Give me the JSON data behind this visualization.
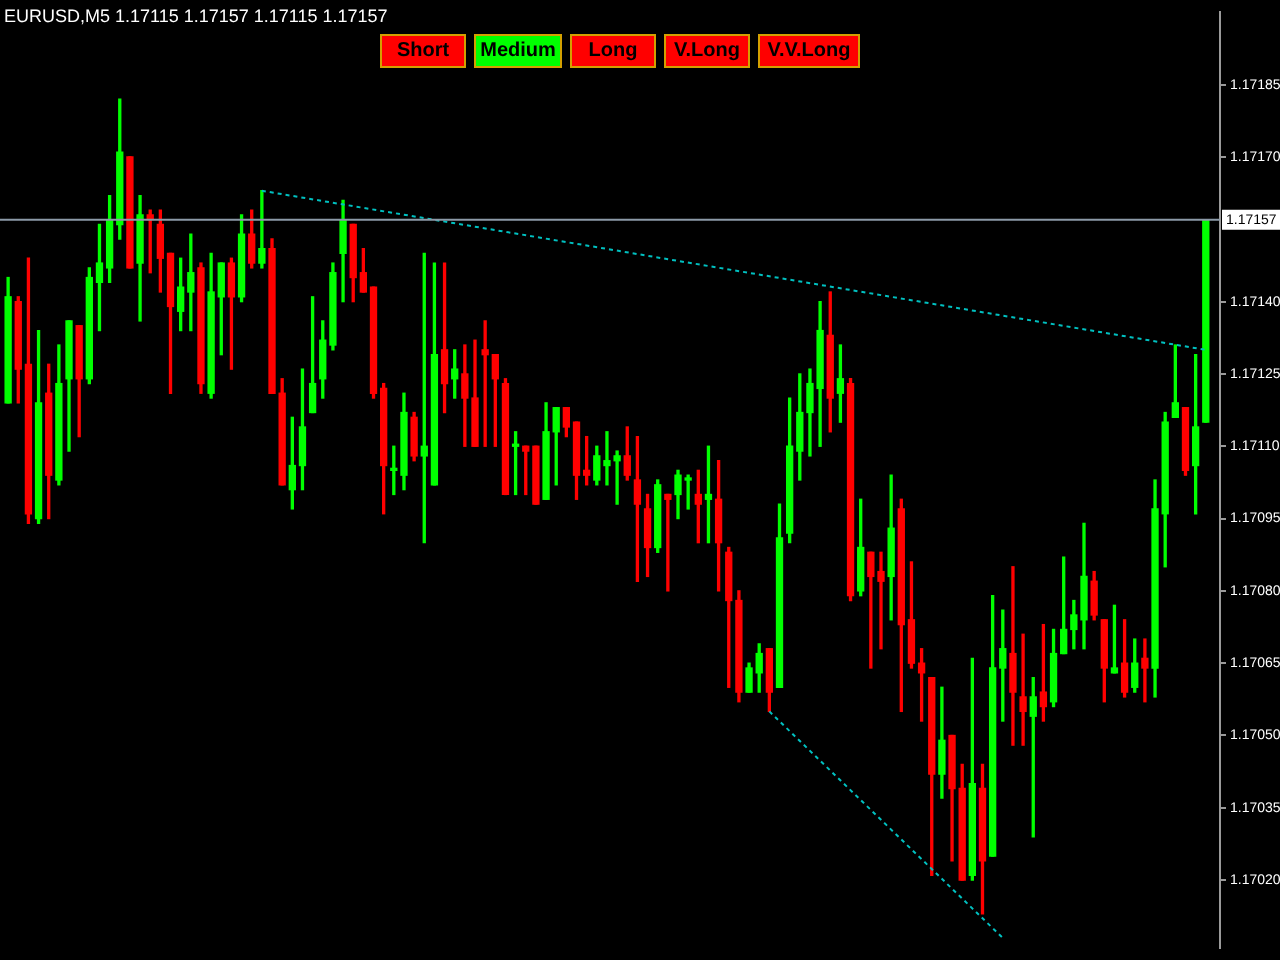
{
  "chart_data": {
    "type": "candlestick",
    "title": "EURUSD,M5 1.17115 1.17157 1.17115 1.17157",
    "categories": [
      null,
      null,
      null,
      null,
      null,
      null,
      null,
      null,
      null,
      null,
      null,
      null,
      null,
      null,
      null,
      null,
      null,
      null,
      null,
      null,
      null,
      null,
      null,
      null,
      null,
      null,
      null,
      null,
      null,
      null,
      null,
      null,
      null,
      null,
      null,
      null,
      null,
      null,
      null,
      null,
      null,
      null,
      null,
      null,
      null,
      null,
      null,
      null,
      null,
      null,
      null,
      null,
      null,
      null,
      null,
      null,
      null,
      null,
      null,
      null,
      null,
      null,
      null,
      null,
      null,
      null,
      null,
      null,
      null,
      null,
      null,
      null,
      null,
      null,
      null,
      null,
      null,
      null,
      null,
      null,
      null,
      null,
      null,
      null,
      null,
      null,
      null,
      null,
      null,
      null,
      null,
      null,
      null,
      null,
      null,
      null,
      null,
      null,
      null,
      null,
      null,
      null,
      null,
      null,
      null,
      null,
      null,
      null,
      null,
      null,
      null,
      null,
      null,
      null,
      null,
      null,
      null,
      null,
      null
    ],
    "ohlc": [
      [
        1.17119,
        1.17145,
        1.17119,
        1.17141
      ],
      [
        1.1714,
        1.17141,
        1.17119,
        1.17126
      ],
      [
        1.17127,
        1.17149,
        1.17094,
        1.17096
      ],
      [
        1.17095,
        1.17134,
        1.17094,
        1.17119
      ],
      [
        1.17121,
        1.17127,
        1.17095,
        1.17104
      ],
      [
        1.17103,
        1.17131,
        1.17102,
        1.17123
      ],
      [
        1.17124,
        1.17136,
        1.17109,
        1.17136
      ],
      [
        1.17135,
        1.17135,
        1.17112,
        1.17124
      ],
      [
        1.17124,
        1.17147,
        1.17123,
        1.17145
      ],
      [
        1.17144,
        1.17156,
        1.17134,
        1.17148
      ],
      [
        1.17147,
        1.17162,
        1.17144,
        1.17157
      ],
      [
        1.17156,
        1.17182,
        1.17153,
        1.17171
      ],
      [
        1.1717,
        1.1717,
        1.17147,
        1.17147
      ],
      [
        1.17148,
        1.17162,
        1.17136,
        1.17158
      ],
      [
        1.17158,
        1.17159,
        1.17146,
        1.17157
      ],
      [
        1.17156,
        1.17159,
        1.17142,
        1.17149
      ],
      [
        1.1715,
        1.1715,
        1.17121,
        1.17139
      ],
      [
        1.17138,
        1.17149,
        1.17134,
        1.17143
      ],
      [
        1.17142,
        1.17154,
        1.17134,
        1.17146
      ],
      [
        1.17147,
        1.17148,
        1.17121,
        1.17123
      ],
      [
        1.17121,
        1.1715,
        1.1712,
        1.17142
      ],
      [
        1.17141,
        1.17148,
        1.17129,
        1.17148
      ],
      [
        1.17148,
        1.17149,
        1.17126,
        1.17141
      ],
      [
        1.17141,
        1.17158,
        1.1714,
        1.17154
      ],
      [
        1.17154,
        1.17159,
        1.17147,
        1.17148
      ],
      [
        1.17148,
        1.17163,
        1.17147,
        1.17151
      ],
      [
        1.17151,
        1.17153,
        1.17121,
        1.17121
      ],
      [
        1.17121,
        1.17124,
        1.17102,
        1.17102
      ],
      [
        1.17101,
        1.17116,
        1.17097,
        1.17106
      ],
      [
        1.17106,
        1.17126,
        1.17101,
        1.17114
      ],
      [
        1.17117,
        1.17141,
        1.17117,
        1.17123
      ],
      [
        1.17124,
        1.17136,
        1.1712,
        1.17132
      ],
      [
        1.17131,
        1.17148,
        1.1713,
        1.17146
      ],
      [
        1.1715,
        1.17161,
        1.1714,
        1.17157
      ],
      [
        1.17156,
        1.17156,
        1.1714,
        1.17145
      ],
      [
        1.17146,
        1.17151,
        1.17142,
        1.17142
      ],
      [
        1.17143,
        1.17143,
        1.1712,
        1.17121
      ],
      [
        1.17122,
        1.17123,
        1.17096,
        1.17106
      ],
      [
        1.17105,
        1.1711,
        1.171,
        1.17105
      ],
      [
        1.17104,
        1.17121,
        1.17101,
        1.17117
      ],
      [
        1.17116,
        1.17117,
        1.17107,
        1.17108
      ],
      [
        1.17108,
        1.1715,
        1.1709,
        1.1711
      ],
      [
        1.17102,
        1.17148,
        1.17102,
        1.17129
      ],
      [
        1.1713,
        1.17148,
        1.17117,
        1.17123
      ],
      [
        1.17124,
        1.1713,
        1.1712,
        1.17126
      ],
      [
        1.17125,
        1.17131,
        1.1711,
        1.1712
      ],
      [
        1.1712,
        1.17132,
        1.1711,
        1.1711
      ],
      [
        1.1713,
        1.17136,
        1.1711,
        1.17129
      ],
      [
        1.17129,
        1.17129,
        1.1711,
        1.17124
      ],
      [
        1.17123,
        1.17124,
        1.171,
        1.171
      ],
      [
        1.1711,
        1.17113,
        1.171,
        1.1711
      ],
      [
        1.1711,
        1.1711,
        1.171,
        1.17109
      ],
      [
        1.1711,
        1.1711,
        1.17098,
        1.17098
      ],
      [
        1.17099,
        1.17119,
        1.17099,
        1.17113
      ],
      [
        1.17113,
        1.17118,
        1.17102,
        1.17118
      ],
      [
        1.17118,
        1.17118,
        1.17112,
        1.17114
      ],
      [
        1.17115,
        1.17115,
        1.17099,
        1.17104
      ],
      [
        1.17105,
        1.17112,
        1.17102,
        1.17104
      ],
      [
        1.17103,
        1.1711,
        1.17102,
        1.17108
      ],
      [
        1.17106,
        1.17113,
        1.17102,
        1.17107
      ],
      [
        1.17107,
        1.17109,
        1.17098,
        1.17108
      ],
      [
        1.17108,
        1.17114,
        1.17103,
        1.17104
      ],
      [
        1.17103,
        1.17112,
        1.17082,
        1.17098
      ],
      [
        1.17097,
        1.171,
        1.17083,
        1.17089
      ],
      [
        1.17089,
        1.17103,
        1.17088,
        1.17102
      ],
      [
        1.171,
        1.171,
        1.1708,
        1.17099
      ],
      [
        1.171,
        1.17105,
        1.17095,
        1.17104
      ],
      [
        1.17103,
        1.17104,
        1.17097,
        1.17103
      ],
      [
        1.171,
        1.17105,
        1.1709,
        1.17098
      ],
      [
        1.17099,
        1.1711,
        1.1709,
        1.171
      ],
      [
        1.17099,
        1.17107,
        1.1708,
        1.1709
      ],
      [
        1.17088,
        1.17089,
        1.1706,
        1.17078
      ],
      [
        1.17078,
        1.1708,
        1.17057,
        1.17059
      ],
      [
        1.17059,
        1.17065,
        1.17059,
        1.17064
      ],
      [
        1.17063,
        1.17069,
        1.17059,
        1.17067
      ],
      [
        1.17068,
        1.17068,
        1.17055,
        1.17059
      ],
      [
        1.1706,
        1.17098,
        1.1706,
        1.17091
      ],
      [
        1.17092,
        1.1712,
        1.1709,
        1.1711
      ],
      [
        1.17109,
        1.17125,
        1.17103,
        1.17117
      ],
      [
        1.17117,
        1.17126,
        1.17108,
        1.17123
      ],
      [
        1.17122,
        1.1714,
        1.1711,
        1.17134
      ],
      [
        1.17133,
        1.17142,
        1.17113,
        1.1712
      ],
      [
        1.17121,
        1.17131,
        1.17115,
        1.17124
      ],
      [
        1.17123,
        1.17124,
        1.17078,
        1.17079
      ],
      [
        1.1708,
        1.17099,
        1.17079,
        1.17089
      ],
      [
        1.17088,
        1.17088,
        1.17064,
        1.17083
      ],
      [
        1.17084,
        1.17088,
        1.17068,
        1.17082
      ],
      [
        1.17083,
        1.17104,
        1.17074,
        1.17093
      ],
      [
        1.17097,
        1.17099,
        1.17055,
        1.17073
      ],
      [
        1.17074,
        1.17086,
        1.17064,
        1.17065
      ],
      [
        1.17065,
        1.17068,
        1.17053,
        1.17063
      ],
      [
        1.17062,
        1.17062,
        1.17021,
        1.17042
      ],
      [
        1.17042,
        1.1706,
        1.17037,
        1.17049
      ],
      [
        1.1705,
        1.1705,
        1.17024,
        1.17039
      ],
      [
        1.17039,
        1.17044,
        1.1702,
        1.1702
      ],
      [
        1.17021,
        1.17066,
        1.1702,
        1.1704
      ],
      [
        1.17039,
        1.17044,
        1.17013,
        1.17024
      ],
      [
        1.17025,
        1.17079,
        1.17025,
        1.17064
      ],
      [
        1.17064,
        1.17076,
        1.17053,
        1.17068
      ],
      [
        1.17067,
        1.17085,
        1.17048,
        1.17059
      ],
      [
        1.17058,
        1.17071,
        1.17048,
        1.17055
      ],
      [
        1.17054,
        1.17062,
        1.17029,
        1.17058
      ],
      [
        1.17059,
        1.17073,
        1.17053,
        1.17056
      ],
      [
        1.17057,
        1.17072,
        1.17056,
        1.17067
      ],
      [
        1.17067,
        1.17087,
        1.17067,
        1.17072
      ],
      [
        1.17072,
        1.17078,
        1.17068,
        1.17075
      ],
      [
        1.17074,
        1.17094,
        1.17068,
        1.17083
      ],
      [
        1.17082,
        1.17084,
        1.17074,
        1.17075
      ],
      [
        1.17074,
        1.17074,
        1.17057,
        1.17064
      ],
      [
        1.17063,
        1.17077,
        1.17063,
        1.17064
      ],
      [
        1.17065,
        1.17074,
        1.17058,
        1.17059
      ],
      [
        1.1706,
        1.1707,
        1.17059,
        1.17065
      ],
      [
        1.17066,
        1.1707,
        1.17057,
        1.17064
      ],
      [
        1.17064,
        1.17103,
        1.17058,
        1.17097
      ],
      [
        1.17096,
        1.17117,
        1.17085,
        1.17115
      ],
      [
        1.17116,
        1.17131,
        1.17116,
        1.17119
      ],
      [
        1.17118,
        1.17118,
        1.17104,
        1.17105
      ],
      [
        1.17106,
        1.17129,
        1.17096,
        1.17114
      ],
      [
        1.17115,
        1.17157,
        1.17115,
        1.17157
      ]
    ],
    "ylim": [
      1.17006,
      1.172
    ],
    "yticks": [
      {
        "value": 1.1702,
        "label": "1.17020"
      },
      {
        "value": 1.17035,
        "label": "1.17035"
      },
      {
        "value": 1.1705,
        "label": "1.17050"
      },
      {
        "value": 1.17065,
        "label": "1.17065"
      },
      {
        "value": 1.1708,
        "label": "1.17080"
      },
      {
        "value": 1.17095,
        "label": "1.17095"
      },
      {
        "value": 1.1711,
        "label": "1.17110"
      },
      {
        "value": 1.17125,
        "label": "1.17125"
      },
      {
        "value": 1.1714,
        "label": "1.17140"
      },
      {
        "value": 1.1717,
        "label": "1.17170"
      },
      {
        "value": 1.17185,
        "label": "1.17185"
      }
    ],
    "ref_lines": [
      {
        "axis": "y",
        "value": 1.17157,
        "label": "1.17157",
        "color": "#8c9aa8"
      }
    ],
    "series": [
      {
        "type": "line",
        "values": [
          null,
          null,
          null,
          null,
          null,
          null,
          null,
          null,
          null,
          null,
          null,
          null,
          null,
          null,
          null,
          null,
          null,
          null,
          null,
          null,
          null,
          null,
          null,
          null,
          null,
          1.17163,
          null,
          null,
          null,
          null,
          null,
          null,
          null,
          null,
          null,
          null,
          null,
          null,
          null,
          null,
          null,
          null,
          null,
          null,
          null,
          null,
          null,
          null,
          null,
          null,
          null,
          null,
          null,
          null,
          null,
          null,
          null,
          null,
          null,
          null,
          null,
          null,
          null,
          null,
          null,
          null,
          null,
          null,
          null,
          null,
          null,
          null,
          null,
          null,
          null,
          null,
          null,
          null,
          null,
          null,
          null,
          null,
          null,
          null,
          null,
          null,
          null,
          null,
          null,
          null,
          null,
          null,
          null,
          null,
          null,
          null,
          null,
          null,
          null,
          null,
          null,
          null,
          null,
          null,
          null,
          null,
          null,
          null,
          null,
          null,
          null,
          null,
          null,
          null,
          null,
          null,
          null,
          null,
          1.1713
        ],
        "color": "#00c0c0",
        "line_style": "dotted",
        "marker": "none"
      },
      {
        "type": "line",
        "values": [
          null,
          null,
          null,
          null,
          null,
          null,
          null,
          null,
          null,
          null,
          null,
          null,
          null,
          null,
          null,
          null,
          null,
          null,
          null,
          null,
          null,
          null,
          null,
          null,
          null,
          null,
          null,
          null,
          null,
          null,
          null,
          null,
          null,
          null,
          null,
          null,
          null,
          null,
          null,
          null,
          null,
          null,
          null,
          null,
          null,
          null,
          null,
          null,
          null,
          null,
          null,
          null,
          null,
          null,
          null,
          null,
          null,
          null,
          null,
          null,
          null,
          null,
          null,
          null,
          null,
          null,
          null,
          null,
          null,
          null,
          null,
          null,
          null,
          null,
          null,
          1.17055,
          null,
          null,
          null,
          null,
          null,
          null,
          null,
          null,
          null,
          null,
          null,
          null,
          null,
          null,
          null,
          null,
          null,
          null,
          null,
          null,
          null,
          null,
          1.17008,
          null,
          null,
          null,
          null,
          null,
          null,
          null,
          null,
          null,
          null,
          null,
          null,
          null,
          null,
          null,
          null,
          null,
          null,
          null,
          null
        ],
        "color": "#00c0c0",
        "line_style": "dotted",
        "marker": "none"
      }
    ],
    "annotations": [
      "Short",
      "Medium",
      "Long",
      "V.Long",
      "V.V.Long"
    ],
    "legend": false
  }
}
